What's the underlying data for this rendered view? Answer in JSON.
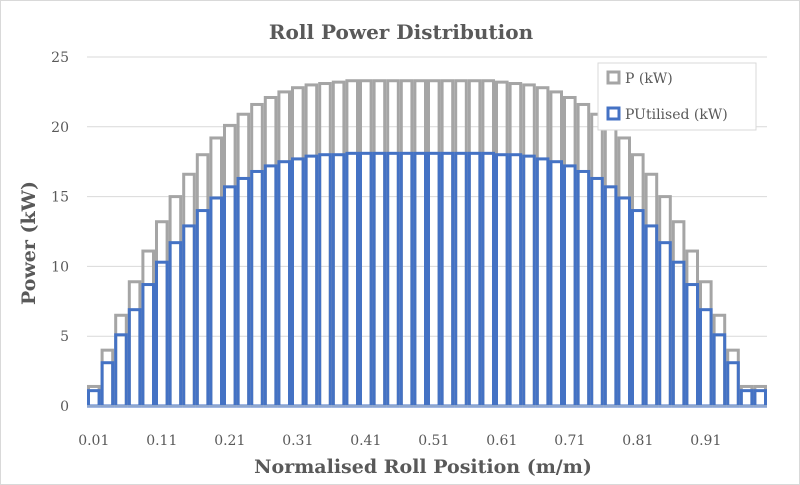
{
  "chart_data": {
    "type": "bar",
    "title": "Roll Power Distribution",
    "xlabel": "Normalised Roll Position (m/m)",
    "ylabel": "Power (kW)",
    "ylim": [
      0,
      25
    ],
    "yticks": [
      0,
      5,
      10,
      15,
      20,
      25
    ],
    "grid": "horizontal",
    "legend_position": "top-right",
    "x_tick_labels": [
      "0.01",
      "0.11",
      "0.21",
      "0.31",
      "0.41",
      "0.51",
      "0.61",
      "0.71",
      "0.81",
      "0.91"
    ],
    "categories": [
      "0.01",
      "0.03",
      "0.05",
      "0.07",
      "0.09",
      "0.11",
      "0.13",
      "0.15",
      "0.17",
      "0.19",
      "0.21",
      "0.23",
      "0.25",
      "0.27",
      "0.29",
      "0.31",
      "0.33",
      "0.35",
      "0.37",
      "0.39",
      "0.41",
      "0.43",
      "0.45",
      "0.47",
      "0.49",
      "0.51",
      "0.53",
      "0.55",
      "0.57",
      "0.59",
      "0.61",
      "0.63",
      "0.65",
      "0.67",
      "0.69",
      "0.71",
      "0.73",
      "0.75",
      "0.77",
      "0.79",
      "0.81",
      "0.83",
      "0.85",
      "0.87",
      "0.89",
      "0.91",
      "0.93",
      "0.95",
      "0.97",
      "0.99"
    ],
    "series": [
      {
        "name": "P (kW)",
        "color": "#a5a5a5",
        "values": [
          1.4,
          4.0,
          6.5,
          8.9,
          11.1,
          13.2,
          15.0,
          16.6,
          18.0,
          19.2,
          20.1,
          20.9,
          21.6,
          22.1,
          22.5,
          22.8,
          23.0,
          23.1,
          23.2,
          23.3,
          23.3,
          23.3,
          23.3,
          23.3,
          23.3,
          23.3,
          23.3,
          23.3,
          23.3,
          23.3,
          23.2,
          23.1,
          23.0,
          22.8,
          22.5,
          22.1,
          21.6,
          20.9,
          20.1,
          19.2,
          18.0,
          16.6,
          15.0,
          13.2,
          11.1,
          8.9,
          6.5,
          4.0,
          1.4,
          1.4
        ]
      },
      {
        "name": "PUtilised (kW)",
        "color": "#4472c4",
        "values": [
          1.1,
          3.1,
          5.1,
          6.9,
          8.7,
          10.3,
          11.7,
          12.9,
          14.0,
          14.9,
          15.7,
          16.3,
          16.8,
          17.2,
          17.5,
          17.7,
          17.9,
          18.0,
          18.0,
          18.1,
          18.1,
          18.1,
          18.1,
          18.1,
          18.1,
          18.1,
          18.1,
          18.1,
          18.1,
          18.1,
          18.0,
          18.0,
          17.9,
          17.7,
          17.5,
          17.2,
          16.8,
          16.3,
          15.7,
          14.9,
          14.0,
          12.9,
          11.7,
          10.3,
          8.7,
          6.9,
          5.1,
          3.1,
          1.1,
          1.1
        ]
      }
    ]
  }
}
